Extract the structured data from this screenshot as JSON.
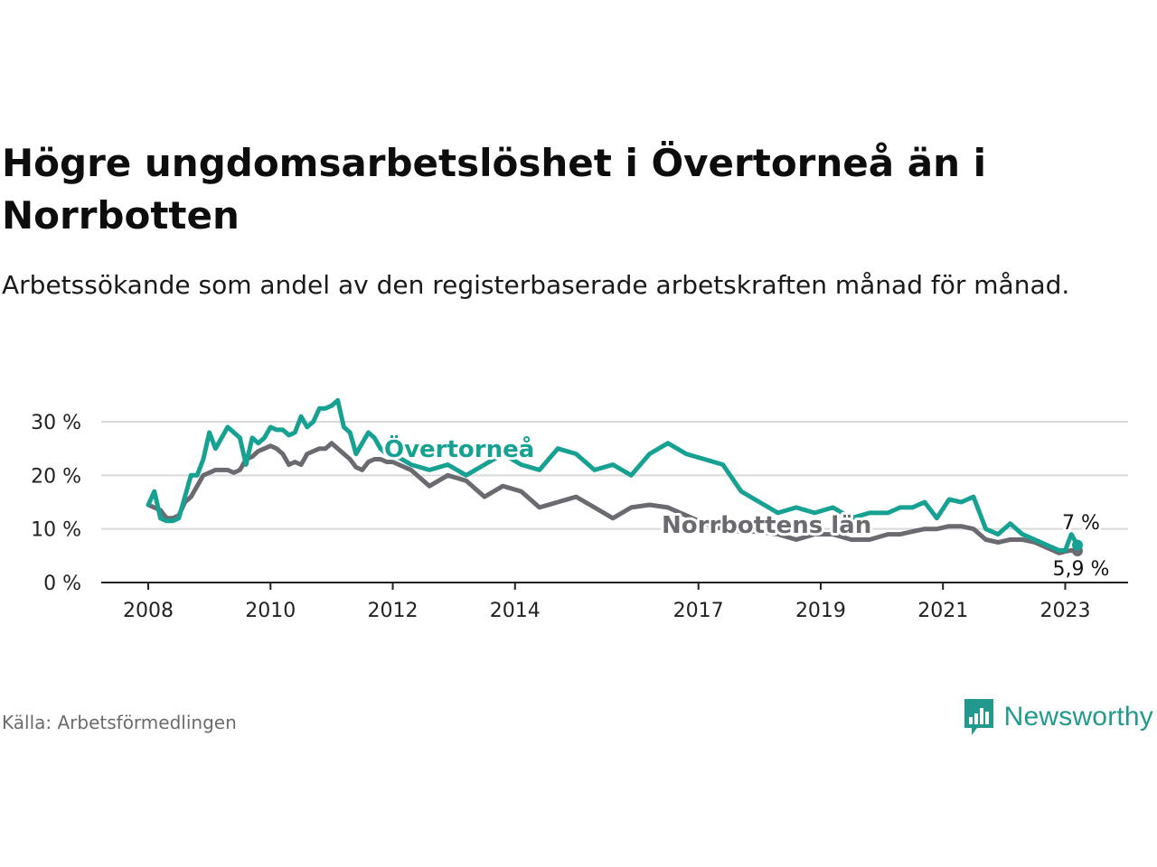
{
  "title": "Högre ungdomsarbetslöshet i Övertorneå än i Norrbotten",
  "subtitle": "Arbetssökande som andel av den registerbaserade arbetskraften månad för månad.",
  "source": "Källa: Arbetsförmedlingen",
  "brand": {
    "name": "Newsworthy",
    "icon": "newsworthy-logo-icon"
  },
  "colors": {
    "overtornea": "#17a192",
    "norrbotten": "#6b6a70",
    "grid": "#d9d9d9",
    "axis": "#222222",
    "brand": "#21998c"
  },
  "chart_data": {
    "type": "line",
    "title": "Högre ungdomsarbetslöshet i Övertorneå än i Norrbotten",
    "xlabel": "",
    "ylabel": "",
    "xlim": [
      2008.0,
      2023.2
    ],
    "ylim": [
      0,
      30
    ],
    "y_ticks": [
      0,
      10,
      20,
      30
    ],
    "y_tick_labels": [
      "0 %",
      "10 %",
      "20 %",
      "30 %"
    ],
    "x_ticks": [
      2008,
      2010,
      2012,
      2014,
      2017,
      2019,
      2021,
      2023
    ],
    "x_tick_labels": [
      "2008",
      "2010",
      "2012",
      "2014",
      "2017",
      "2019",
      "2021",
      "2023"
    ],
    "grid": true,
    "series": [
      {
        "name": "Övertorneå",
        "label": "Övertorneå",
        "end_label": "7 %",
        "x": [
          2008.0,
          2008.1,
          2008.2,
          2008.3,
          2008.4,
          2008.5,
          2008.6,
          2008.7,
          2008.8,
          2008.9,
          2009.0,
          2009.1,
          2009.2,
          2009.3,
          2009.4,
          2009.5,
          2009.6,
          2009.7,
          2009.8,
          2009.9,
          2010.0,
          2010.1,
          2010.2,
          2010.3,
          2010.4,
          2010.5,
          2010.6,
          2010.7,
          2010.8,
          2010.9,
          2011.0,
          2011.1,
          2011.2,
          2011.3,
          2011.4,
          2011.5,
          2011.6,
          2011.7,
          2011.8,
          2011.9,
          2012.0,
          2012.3,
          2012.6,
          2012.9,
          2013.2,
          2013.5,
          2013.8,
          2014.1,
          2014.4,
          2014.7,
          2015.0,
          2015.3,
          2015.6,
          2015.9,
          2016.2,
          2016.5,
          2016.8,
          2017.1,
          2017.4,
          2017.7,
          2018.0,
          2018.3,
          2018.6,
          2018.9,
          2019.2,
          2019.5,
          2019.8,
          2020.1,
          2020.3,
          2020.5,
          2020.7,
          2020.9,
          2021.1,
          2021.3,
          2021.5,
          2021.7,
          2021.9,
          2022.1,
          2022.3,
          2022.5,
          2022.7,
          2022.9,
          2023.0,
          2023.1,
          2023.2
        ],
        "y": [
          14.5,
          17,
          12,
          11.5,
          11.5,
          12,
          16,
          20,
          20,
          23,
          28,
          25,
          27,
          29,
          28,
          27,
          22,
          27,
          26,
          27,
          29,
          28.5,
          28.5,
          27.5,
          28,
          31,
          29,
          30,
          32.5,
          32.5,
          33,
          34,
          29,
          28,
          24,
          26,
          28,
          27,
          25,
          24,
          24,
          22,
          21,
          22,
          20,
          22,
          24,
          22,
          21,
          25,
          24,
          21,
          22,
          20,
          24,
          26,
          24,
          23,
          22,
          17,
          15,
          13,
          14,
          13,
          14,
          12,
          13,
          13,
          14,
          14,
          15,
          12,
          15.5,
          15,
          16,
          10,
          9,
          11,
          9,
          8,
          7,
          6,
          6,
          9,
          7
        ]
      },
      {
        "name": "Norrbottens län",
        "label": "Norrbottens län",
        "end_label": "5,9 %",
        "x": [
          2008.0,
          2008.1,
          2008.2,
          2008.3,
          2008.4,
          2008.5,
          2008.6,
          2008.7,
          2008.8,
          2008.9,
          2009.0,
          2009.1,
          2009.2,
          2009.3,
          2009.4,
          2009.5,
          2009.6,
          2009.7,
          2009.8,
          2009.9,
          2010.0,
          2010.1,
          2010.2,
          2010.3,
          2010.4,
          2010.5,
          2010.6,
          2010.7,
          2010.8,
          2010.9,
          2011.0,
          2011.1,
          2011.2,
          2011.3,
          2011.4,
          2011.5,
          2011.6,
          2011.7,
          2011.8,
          2011.9,
          2012.0,
          2012.3,
          2012.6,
          2012.9,
          2013.2,
          2013.5,
          2013.8,
          2014.1,
          2014.4,
          2014.7,
          2015.0,
          2015.3,
          2015.6,
          2015.9,
          2016.2,
          2016.5,
          2016.8,
          2017.1,
          2017.4,
          2017.7,
          2018.0,
          2018.3,
          2018.6,
          2018.9,
          2019.2,
          2019.5,
          2019.8,
          2020.1,
          2020.3,
          2020.5,
          2020.7,
          2020.9,
          2021.1,
          2021.3,
          2021.5,
          2021.7,
          2021.9,
          2022.1,
          2022.3,
          2022.5,
          2022.7,
          2022.9,
          2023.0,
          2023.1,
          2023.2
        ],
        "y": [
          14.5,
          14,
          13.5,
          12,
          12,
          12.5,
          15,
          16,
          18,
          20,
          20.5,
          21,
          21,
          21,
          20.5,
          21,
          23,
          23.5,
          24.5,
          25,
          25.5,
          25,
          24,
          22,
          22.5,
          22,
          24,
          24.5,
          25,
          25,
          26,
          25,
          24,
          23,
          21.5,
          21,
          22.5,
          23,
          23,
          22.5,
          22.5,
          21,
          18,
          20,
          19,
          16,
          18,
          17,
          14,
          15,
          16,
          14,
          12,
          14,
          14.5,
          14,
          12.5,
          11,
          10,
          9.5,
          9.5,
          9,
          8,
          9,
          9,
          8,
          8,
          9,
          9,
          9.5,
          10,
          10,
          10.5,
          10.5,
          10,
          8,
          7.5,
          8,
          8,
          7.5,
          6.5,
          5.5,
          5.8,
          6,
          5.9
        ]
      }
    ]
  }
}
